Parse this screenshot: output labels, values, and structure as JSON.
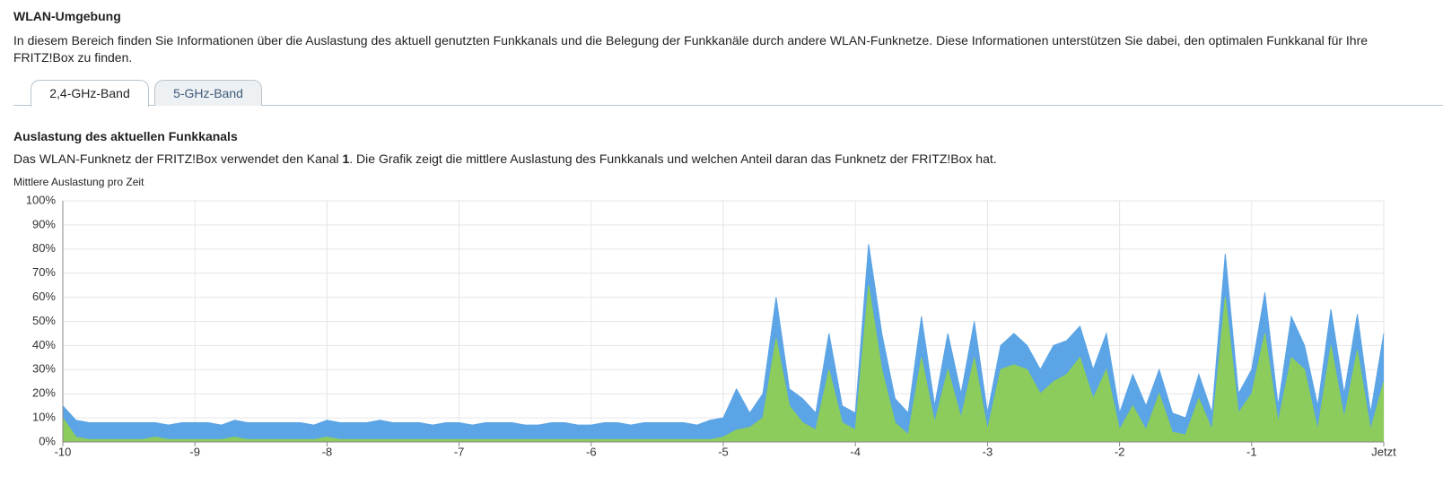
{
  "header": {
    "title": "WLAN-Umgebung",
    "intro": "In diesem Bereich finden Sie Informationen über die Auslastung des aktuell genutzten Funkkanals und die Belegung der Funkkanäle durch andere WLAN-Funknetze. Diese Informationen unterstützen Sie dabei, den optimalen Funkkanal für Ihre FRITZ!Box zu finden."
  },
  "tabs": [
    "2,4-GHz-Band",
    "5-GHz-Band"
  ],
  "section": {
    "title": "Auslastung des aktuellen Funkkanals",
    "text_before": "Das WLAN-Funknetz der FRITZ!Box verwendet den Kanal ",
    "channel": "1",
    "text_after": ". Die Grafik zeigt die mittlere Auslastung des Funkkanals und welchen Anteil daran das Funknetz der FRITZ!Box hat."
  },
  "chart_data": {
    "type": "area",
    "ylabel": "Mittlere Auslastung pro Zeit",
    "x": [
      -10,
      -9.9,
      -9.8,
      -9.7,
      -9.6,
      -9.5,
      -9.4,
      -9.3,
      -9.2,
      -9.1,
      -9,
      -8.9,
      -8.8,
      -8.7,
      -8.6,
      -8.5,
      -8.4,
      -8.3,
      -8.2,
      -8.1,
      -8,
      -7.9,
      -7.8,
      -7.7,
      -7.6,
      -7.5,
      -7.4,
      -7.3,
      -7.2,
      -7.1,
      -7,
      -6.9,
      -6.8,
      -6.7,
      -6.6,
      -6.5,
      -6.4,
      -6.3,
      -6.2,
      -6.1,
      -6,
      -5.9,
      -5.8,
      -5.7,
      -5.6,
      -5.5,
      -5.4,
      -5.3,
      -5.2,
      -5.1,
      -5,
      -4.9,
      -4.8,
      -4.7,
      -4.6,
      -4.5,
      -4.4,
      -4.3,
      -4.2,
      -4.1,
      -4,
      -3.9,
      -3.8,
      -3.7,
      -3.6,
      -3.5,
      -3.4,
      -3.3,
      -3.2,
      -3.1,
      -3,
      -2.9,
      -2.8,
      -2.7,
      -2.6,
      -2.5,
      -2.4,
      -2.3,
      -2.2,
      -2.1,
      -2,
      -1.9,
      -1.8,
      -1.7,
      -1.6,
      -1.5,
      -1.4,
      -1.3,
      -1.2,
      -1.1,
      -1,
      -0.9,
      -0.8,
      -0.7,
      -0.6,
      -0.5,
      -0.4,
      -0.3,
      -0.2,
      -0.1,
      0
    ],
    "series": [
      {
        "color": "#5ba4e5",
        "values": [
          15,
          9,
          8,
          8,
          8,
          8,
          8,
          8,
          7,
          8,
          8,
          8,
          7,
          9,
          8,
          8,
          8,
          8,
          8,
          7,
          9,
          8,
          8,
          8,
          9,
          8,
          8,
          8,
          7,
          8,
          8,
          7,
          8,
          8,
          8,
          7,
          7,
          8,
          8,
          7,
          7,
          8,
          8,
          7,
          8,
          8,
          8,
          8,
          7,
          9,
          10,
          22,
          12,
          20,
          60,
          22,
          18,
          12,
          45,
          15,
          12,
          82,
          45,
          18,
          12,
          52,
          15,
          45,
          20,
          50,
          12,
          40,
          45,
          40,
          30,
          40,
          42,
          48,
          30,
          45,
          12,
          28,
          15,
          30,
          12,
          10,
          28,
          12,
          78,
          20,
          30,
          62,
          15,
          52,
          40,
          15,
          55,
          20,
          53,
          12,
          45
        ]
      },
      {
        "color": "#8ccc5c",
        "values": [
          10,
          2,
          1,
          1,
          1,
          1,
          1,
          2,
          1,
          1,
          1,
          1,
          1,
          2,
          1,
          1,
          1,
          1,
          1,
          1,
          2,
          1,
          1,
          1,
          1,
          1,
          1,
          1,
          1,
          1,
          1,
          1,
          1,
          1,
          1,
          1,
          1,
          1,
          1,
          1,
          1,
          1,
          1,
          1,
          1,
          1,
          1,
          1,
          1,
          1,
          2,
          5,
          6,
          10,
          43,
          15,
          8,
          5,
          30,
          8,
          5,
          65,
          30,
          8,
          3,
          35,
          8,
          30,
          10,
          35,
          5,
          30,
          32,
          30,
          20,
          25,
          28,
          35,
          18,
          30,
          5,
          15,
          5,
          20,
          4,
          3,
          18,
          5,
          60,
          12,
          20,
          45,
          8,
          35,
          30,
          5,
          40,
          10,
          38,
          5,
          25
        ]
      }
    ],
    "xlim": [
      -10,
      0
    ],
    "xticks": [
      -10,
      -9,
      -8,
      -7,
      -6,
      -5,
      -4,
      -3,
      -2,
      -1,
      {
        "value": 0,
        "label": "Jetzt"
      }
    ],
    "ylim": [
      0,
      100
    ],
    "yticks": [
      {
        "value": 0,
        "label": "0%"
      },
      {
        "value": 10,
        "label": "10%"
      },
      {
        "value": 20,
        "label": "20%"
      },
      {
        "value": 30,
        "label": "30%"
      },
      {
        "value": 40,
        "label": "40%"
      },
      {
        "value": 50,
        "label": "50%"
      },
      {
        "value": 60,
        "label": "60%"
      },
      {
        "value": 70,
        "label": "70%"
      },
      {
        "value": 80,
        "label": "80%"
      },
      {
        "value": 90,
        "label": "90%"
      },
      {
        "value": 100,
        "label": "100%"
      }
    ],
    "grid": true
  }
}
